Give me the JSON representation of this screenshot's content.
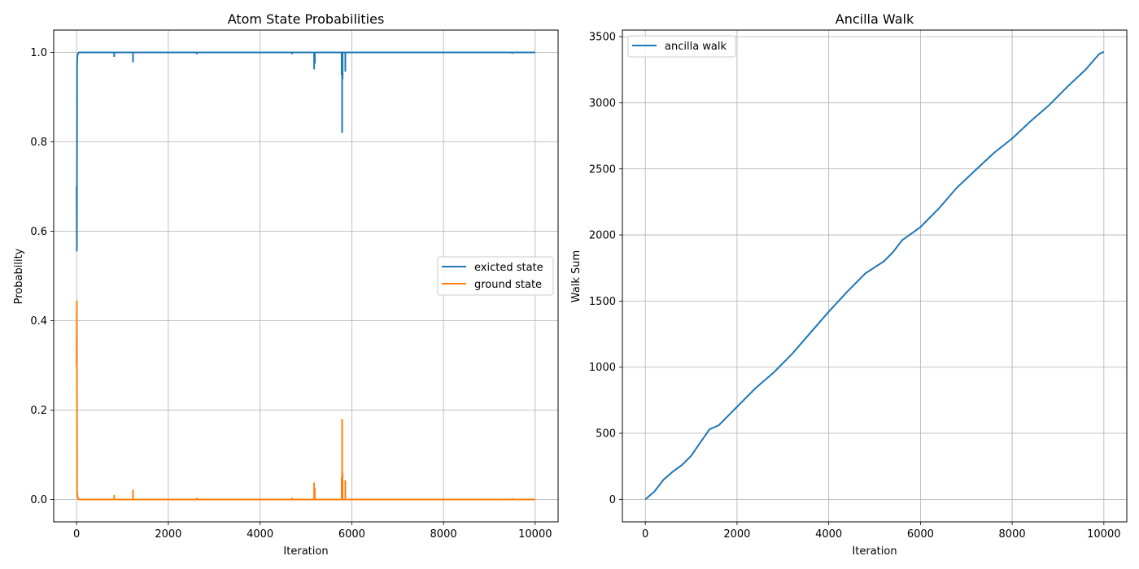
{
  "chart_data": [
    {
      "type": "line",
      "title": "Atom State Probabilities",
      "xlabel": "Iteration",
      "ylabel": "Probability",
      "xlim": [
        -500,
        10500
      ],
      "ylim": [
        -0.05,
        1.05
      ],
      "xticks": [
        0,
        2000,
        4000,
        6000,
        8000,
        10000
      ],
      "xtick_labels": [
        "0",
        "2000",
        "4000",
        "6000",
        "8000",
        "10000"
      ],
      "yticks": [
        0.0,
        0.2,
        0.4,
        0.6,
        0.8,
        1.0
      ],
      "ytick_labels": [
        "0.0",
        "0.2",
        "0.4",
        "0.6",
        "0.8",
        "1.0"
      ],
      "grid": true,
      "legend_position": "center-right",
      "series": [
        {
          "name": "exicted state",
          "color": "#1f77b4",
          "baseline": 1.0,
          "points": [
            [
              0,
              0.7
            ],
            [
              5,
              0.555
            ],
            [
              10,
              0.98
            ],
            [
              20,
              0.995
            ],
            [
              50,
              1.0
            ]
          ],
          "spikes": [
            [
              820,
              0.99
            ],
            [
              1230,
              0.978
            ],
            [
              5180,
              0.962
            ],
            [
              5195,
              0.975
            ],
            [
              5780,
              0.95
            ],
            [
              5790,
              0.82
            ],
            [
              5800,
              0.94
            ],
            [
              5860,
              0.957
            ],
            [
              2620,
              0.996
            ],
            [
              4700,
              0.996
            ],
            [
              9500,
              0.997
            ]
          ]
        },
        {
          "name": "ground state",
          "color": "#ff7f0e",
          "baseline": 0.0,
          "points": [
            [
              0,
              0.3
            ],
            [
              5,
              0.445
            ],
            [
              10,
              0.02
            ],
            [
              20,
              0.005
            ],
            [
              50,
              0.0
            ]
          ],
          "spikes": [
            [
              820,
              0.01
            ],
            [
              1230,
              0.022
            ],
            [
              5180,
              0.038
            ],
            [
              5195,
              0.025
            ],
            [
              5780,
              0.05
            ],
            [
              5790,
              0.18
            ],
            [
              5800,
              0.06
            ],
            [
              5860,
              0.043
            ],
            [
              2620,
              0.004
            ],
            [
              4700,
              0.004
            ],
            [
              9500,
              0.003
            ]
          ]
        }
      ]
    },
    {
      "type": "line",
      "title": "Ancilla Walk",
      "xlabel": "Iteration",
      "ylabel": "Walk Sum",
      "xlim": [
        -500,
        10500
      ],
      "ylim": [
        -170,
        3550
      ],
      "xticks": [
        0,
        2000,
        4000,
        6000,
        8000,
        10000
      ],
      "xtick_labels": [
        "0",
        "2000",
        "4000",
        "6000",
        "8000",
        "10000"
      ],
      "yticks": [
        0,
        500,
        1000,
        1500,
        2000,
        2500,
        3000,
        3500
      ],
      "ytick_labels": [
        "0",
        "500",
        "1000",
        "1500",
        "2000",
        "2500",
        "3000",
        "3500"
      ],
      "grid": true,
      "legend_position": "upper-left",
      "series": [
        {
          "name": "ancilla walk",
          "color": "#1f77b4",
          "x": [
            0,
            200,
            400,
            600,
            800,
            1000,
            1200,
            1400,
            1600,
            1800,
            2000,
            2400,
            2800,
            3200,
            3600,
            4000,
            4400,
            4800,
            5200,
            5400,
            5600,
            6000,
            6400,
            6800,
            7200,
            7600,
            8000,
            8400,
            8800,
            9200,
            9600,
            9900,
            10000
          ],
          "y": [
            0,
            60,
            150,
            210,
            260,
            330,
            430,
            530,
            560,
            630,
            700,
            840,
            960,
            1100,
            1260,
            1420,
            1570,
            1710,
            1800,
            1870,
            1960,
            2060,
            2200,
            2360,
            2490,
            2620,
            2730,
            2860,
            2980,
            3120,
            3250,
            3370,
            3385
          ]
        }
      ]
    }
  ]
}
